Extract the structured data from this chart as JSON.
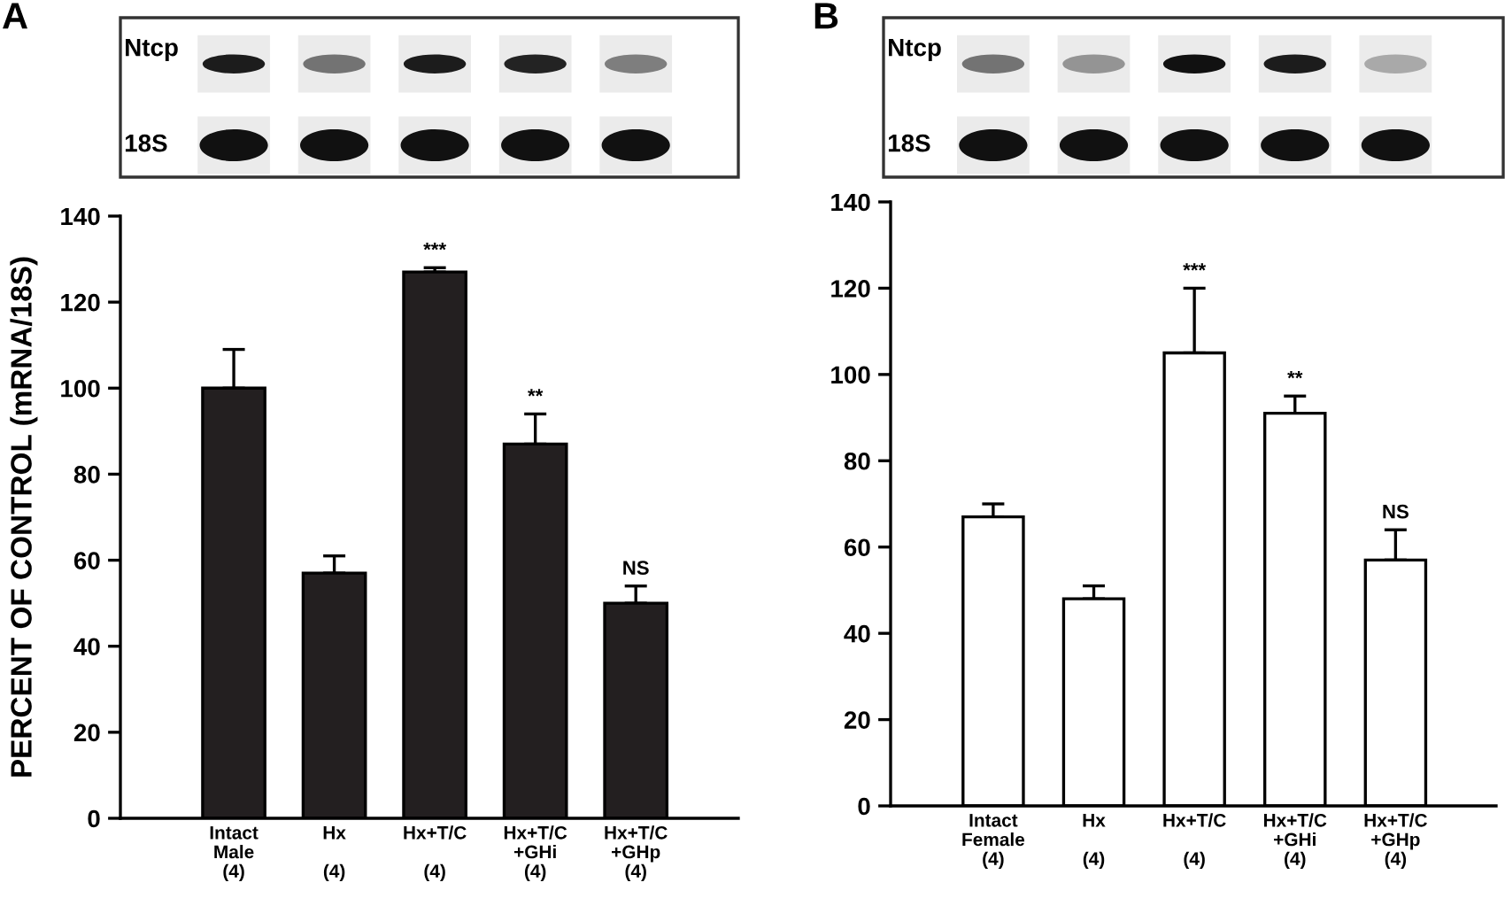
{
  "chart_data": [
    {
      "type": "bar",
      "title": "A",
      "ylabel": "PERCENT OF CONTROL (mRNA/18S)",
      "categories": [
        "Intact\nMale\n(4)",
        "Hx\n\n(4)",
        "Hx+T/C\n\n(4)",
        "Hx+T/C\n+GHi\n(4)",
        "Hx+T/C\n+GHp\n(4)"
      ],
      "values": [
        100,
        57,
        127,
        87,
        50
      ],
      "color": "#231f20",
      "errors": [
        [
          100,
          109
        ],
        [
          57,
          61
        ],
        [
          127,
          128
        ],
        [
          87,
          94
        ],
        [
          50,
          54
        ]
      ],
      "ylim": [
        0,
        140
      ],
      "yticks": [
        0,
        20,
        40,
        60,
        80,
        100,
        120,
        140
      ],
      "annotations": [
        "Ntcp",
        "18S",
        {
          "text": "***",
          "x": "Hx+T/C\n\n(4)",
          "y": 128
        },
        {
          "text": "**",
          "x": "Hx+T/C\n+GHi\n(4)",
          "y": 94
        },
        {
          "text": "NS",
          "x": "Hx+T/C\n+GHp\n(4)",
          "y": 54
        }
      ]
    },
    {
      "type": "bar",
      "title": "B",
      "categories": [
        "Intact\nFemale\n(4)",
        "Hx\n\n(4)",
        "Hx+T/C\n\n(4)",
        "Hx+T/C\n+GHi\n(4)",
        "Hx+T/C\n+GHp\n(4)"
      ],
      "values": [
        67,
        48,
        105,
        91,
        57
      ],
      "color": "#ffffff",
      "errors": [
        [
          67,
          70
        ],
        [
          48,
          51
        ],
        [
          105,
          120
        ],
        [
          91,
          95
        ],
        [
          57,
          64
        ]
      ],
      "ylim": [
        0,
        140
      ],
      "yticks": [
        0,
        20,
        40,
        60,
        80,
        100,
        120,
        140
      ],
      "annotations": [
        "Ntcp",
        "18S",
        {
          "text": "***",
          "x": "Hx+T/C\n\n(4)",
          "y": 120
        },
        {
          "text": "**",
          "x": "Hx+T/C\n+GHi\n(4)",
          "y": 95
        },
        {
          "text": "NS",
          "x": "Hx+T/C\n+GHp\n(4)",
          "y": 64
        }
      ]
    }
  ]
}
